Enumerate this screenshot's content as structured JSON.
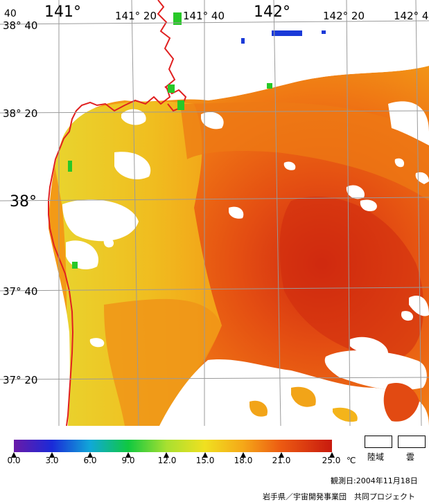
{
  "map": {
    "top_labels": [
      "141°",
      "141° 20",
      "141° 40",
      "142°",
      "142° 20",
      "142° 4"
    ],
    "left_labels": [
      "38° 40",
      "38° 20",
      "38°",
      "37° 40",
      "37° 20"
    ],
    "corner_label": "40",
    "land_color": "#ffffff",
    "coast_color": "#e02020",
    "grid_color": "#9a9a9a"
  },
  "legend": {
    "ticks": [
      "0.0",
      "3.0",
      "6.0",
      "9.0",
      "12.0",
      "15.0",
      "18.0",
      "21.0",
      "25.0"
    ],
    "unit": "℃",
    "swatches": [
      "陸域",
      "雲"
    ],
    "colors": [
      "#6a1aa8",
      "#1a2ad8",
      "#10a8d8",
      "#10c840",
      "#a8e030",
      "#f0e020",
      "#f5a818",
      "#ec5a12",
      "#c81a0e"
    ]
  },
  "footer": {
    "date": "観測日:2004年11月18日",
    "credit": "岩手県／宇宙開発事業団　共同プロジェクト"
  }
}
